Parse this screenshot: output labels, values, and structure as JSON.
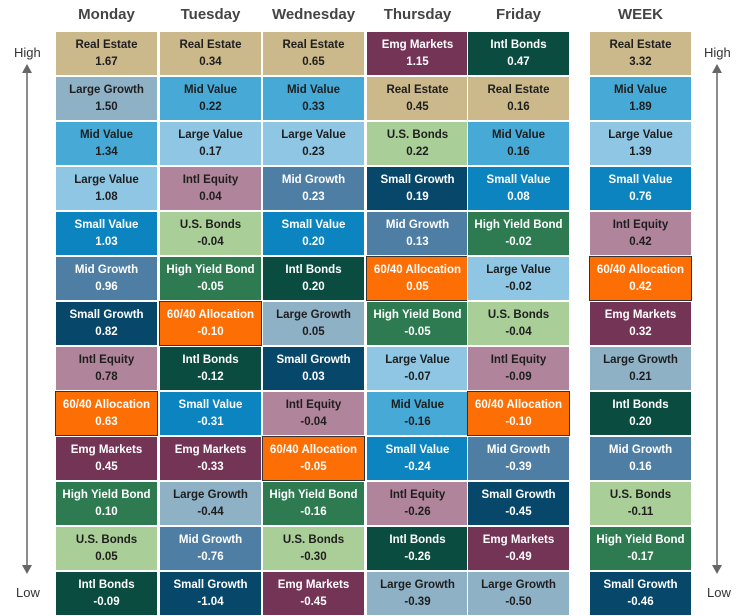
{
  "axis": {
    "high_label": "High",
    "low_label": "Low"
  },
  "colors": {
    "Real Estate": "#cbb98c",
    "Large Growth": "#8fb1c5",
    "Mid Value": "#47a9d6",
    "Large Value": "#8ec6e4",
    "Small Value": "#0b84c0",
    "Mid Growth": "#4f7ea4",
    "Small Growth": "#07476a",
    "Intl Equity": "#b0849a",
    "60/40 Allocation": "#fd6f05",
    "Emg Markets": "#733456",
    "High Yield Bond": "#2e7b52",
    "U.S. Bonds": "#a9ce98",
    "Intl Bonds": "#0a4c40"
  },
  "chart_data": {
    "type": "table",
    "title": "",
    "columns": [
      {
        "day": "Monday",
        "rows": [
          {
            "asset": "Real Estate",
            "value": "1.67"
          },
          {
            "asset": "Large Growth",
            "value": "1.50"
          },
          {
            "asset": "Mid Value",
            "value": "1.34"
          },
          {
            "asset": "Large Value",
            "value": "1.08"
          },
          {
            "asset": "Small Value",
            "value": "1.03"
          },
          {
            "asset": "Mid Growth",
            "value": "0.96"
          },
          {
            "asset": "Small Growth",
            "value": "0.82"
          },
          {
            "asset": "Intl Equity",
            "value": "0.78"
          },
          {
            "asset": "60/40 Allocation",
            "value": "0.63"
          },
          {
            "asset": "Emg Markets",
            "value": "0.45"
          },
          {
            "asset": "High Yield Bond",
            "value": "0.10"
          },
          {
            "asset": "U.S. Bonds",
            "value": "0.05"
          },
          {
            "asset": "Intl Bonds",
            "value": "-0.09"
          }
        ]
      },
      {
        "day": "Tuesday",
        "rows": [
          {
            "asset": "Real Estate",
            "value": "0.34"
          },
          {
            "asset": "Mid Value",
            "value": "0.22"
          },
          {
            "asset": "Large Value",
            "value": "0.17"
          },
          {
            "asset": "Intl Equity",
            "value": "0.04"
          },
          {
            "asset": "U.S. Bonds",
            "value": "-0.04"
          },
          {
            "asset": "High Yield Bond",
            "value": "-0.05"
          },
          {
            "asset": "60/40 Allocation",
            "value": "-0.10"
          },
          {
            "asset": "Intl Bonds",
            "value": "-0.12"
          },
          {
            "asset": "Small Value",
            "value": "-0.31"
          },
          {
            "asset": "Emg Markets",
            "value": "-0.33"
          },
          {
            "asset": "Large Growth",
            "value": "-0.44"
          },
          {
            "asset": "Mid Growth",
            "value": "-0.76"
          },
          {
            "asset": "Small Growth",
            "value": "-1.04"
          }
        ]
      },
      {
        "day": "Wednesday",
        "rows": [
          {
            "asset": "Real Estate",
            "value": "0.65"
          },
          {
            "asset": "Mid Value",
            "value": "0.33"
          },
          {
            "asset": "Large Value",
            "value": "0.23"
          },
          {
            "asset": "Mid Growth",
            "value": "0.23"
          },
          {
            "asset": "Small Value",
            "value": "0.20"
          },
          {
            "asset": "Intl Bonds",
            "value": "0.20"
          },
          {
            "asset": "Large Growth",
            "value": "0.05"
          },
          {
            "asset": "Small Growth",
            "value": "0.03"
          },
          {
            "asset": "Intl Equity",
            "value": "-0.04"
          },
          {
            "asset": "60/40 Allocation",
            "value": "-0.05"
          },
          {
            "asset": "High Yield Bond",
            "value": "-0.16"
          },
          {
            "asset": "U.S. Bonds",
            "value": "-0.30"
          },
          {
            "asset": "Emg Markets",
            "value": "-0.45"
          }
        ]
      },
      {
        "day": "Thursday",
        "rows": [
          {
            "asset": "Emg Markets",
            "value": "1.15"
          },
          {
            "asset": "Real Estate",
            "value": "0.45"
          },
          {
            "asset": "U.S. Bonds",
            "value": "0.22"
          },
          {
            "asset": "Small Growth",
            "value": "0.19"
          },
          {
            "asset": "Mid Growth",
            "value": "0.13"
          },
          {
            "asset": "60/40 Allocation",
            "value": "0.05"
          },
          {
            "asset": "High Yield Bond",
            "value": "-0.05"
          },
          {
            "asset": "Large Value",
            "value": "-0.07"
          },
          {
            "asset": "Mid Value",
            "value": "-0.16"
          },
          {
            "asset": "Small Value",
            "value": "-0.24"
          },
          {
            "asset": "Intl Equity",
            "value": "-0.26"
          },
          {
            "asset": "Intl Bonds",
            "value": "-0.26"
          },
          {
            "asset": "Large Growth",
            "value": "-0.39"
          }
        ]
      },
      {
        "day": "Friday",
        "rows": [
          {
            "asset": "Intl Bonds",
            "value": "0.47"
          },
          {
            "asset": "Real Estate",
            "value": "0.16"
          },
          {
            "asset": "Mid Value",
            "value": "0.16"
          },
          {
            "asset": "Small Value",
            "value": "0.08"
          },
          {
            "asset": "High Yield Bond",
            "value": "-0.02"
          },
          {
            "asset": "Large Value",
            "value": "-0.02"
          },
          {
            "asset": "U.S. Bonds",
            "value": "-0.04"
          },
          {
            "asset": "Intl Equity",
            "value": "-0.09"
          },
          {
            "asset": "60/40 Allocation",
            "value": "-0.10"
          },
          {
            "asset": "Mid Growth",
            "value": "-0.39"
          },
          {
            "asset": "Small Growth",
            "value": "-0.45"
          },
          {
            "asset": "Emg Markets",
            "value": "-0.49"
          },
          {
            "asset": "Large Growth",
            "value": "-0.50"
          }
        ]
      },
      {
        "day": "WEEK",
        "rows": [
          {
            "asset": "Real Estate",
            "value": "3.32"
          },
          {
            "asset": "Mid Value",
            "value": "1.89"
          },
          {
            "asset": "Large Value",
            "value": "1.39"
          },
          {
            "asset": "Small Value",
            "value": "0.76"
          },
          {
            "asset": "Intl Equity",
            "value": "0.42"
          },
          {
            "asset": "60/40 Allocation",
            "value": "0.42"
          },
          {
            "asset": "Emg Markets",
            "value": "0.32"
          },
          {
            "asset": "Large Growth",
            "value": "0.21"
          },
          {
            "asset": "Intl Bonds",
            "value": "0.20"
          },
          {
            "asset": "Mid Growth",
            "value": "0.16"
          },
          {
            "asset": "U.S. Bonds",
            "value": "-0.11"
          },
          {
            "asset": "High Yield Bond",
            "value": "-0.17"
          },
          {
            "asset": "Small Growth",
            "value": "-0.46"
          }
        ]
      }
    ]
  }
}
